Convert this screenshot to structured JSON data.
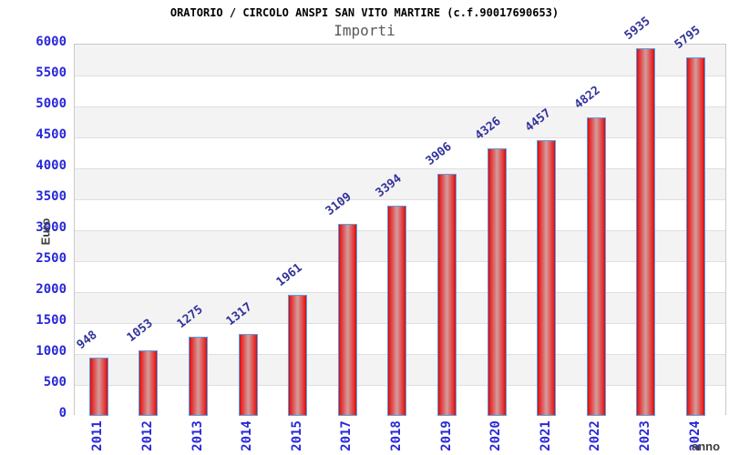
{
  "header": {
    "title": "ORATORIO / CIRCOLO ANSPI SAN VITO MARTIRE (c.f.90017690653)",
    "subtitle": "Importi"
  },
  "chart_data": {
    "type": "bar",
    "title": "ORATORIO / CIRCOLO ANSPI SAN VITO MARTIRE (c.f.90017690653)",
    "subtitle": "Importi",
    "categories": [
      "2011",
      "2012",
      "2013",
      "2014",
      "2015",
      "2017",
      "2018",
      "2019",
      "2020",
      "2021",
      "2022",
      "2023",
      "2024"
    ],
    "values": [
      948,
      1053,
      1275,
      1317,
      1961,
      3109,
      3394,
      3906,
      4326,
      4457,
      4822,
      5935,
      5795
    ],
    "xlabel": "anno",
    "ylabel": "Euro",
    "ylim": [
      0,
      6000
    ],
    "ytick_step": 500,
    "grid": "horizontal-bands-alternating",
    "legend": "none",
    "colors": {
      "axis_tick_label": "#2828d8",
      "category_label": "#2828d8",
      "value_label": "#32329b",
      "bar_edge": "#c40d0d",
      "bar_mid": "#d49898",
      "bar_bright": "#e62020",
      "bar_border": "#54a2e8",
      "band_gray": "#f3f3f3",
      "title_color": "#000000",
      "subtitle_color": "#5a5a5a",
      "axis_title_color": "#3d3d3d"
    }
  }
}
